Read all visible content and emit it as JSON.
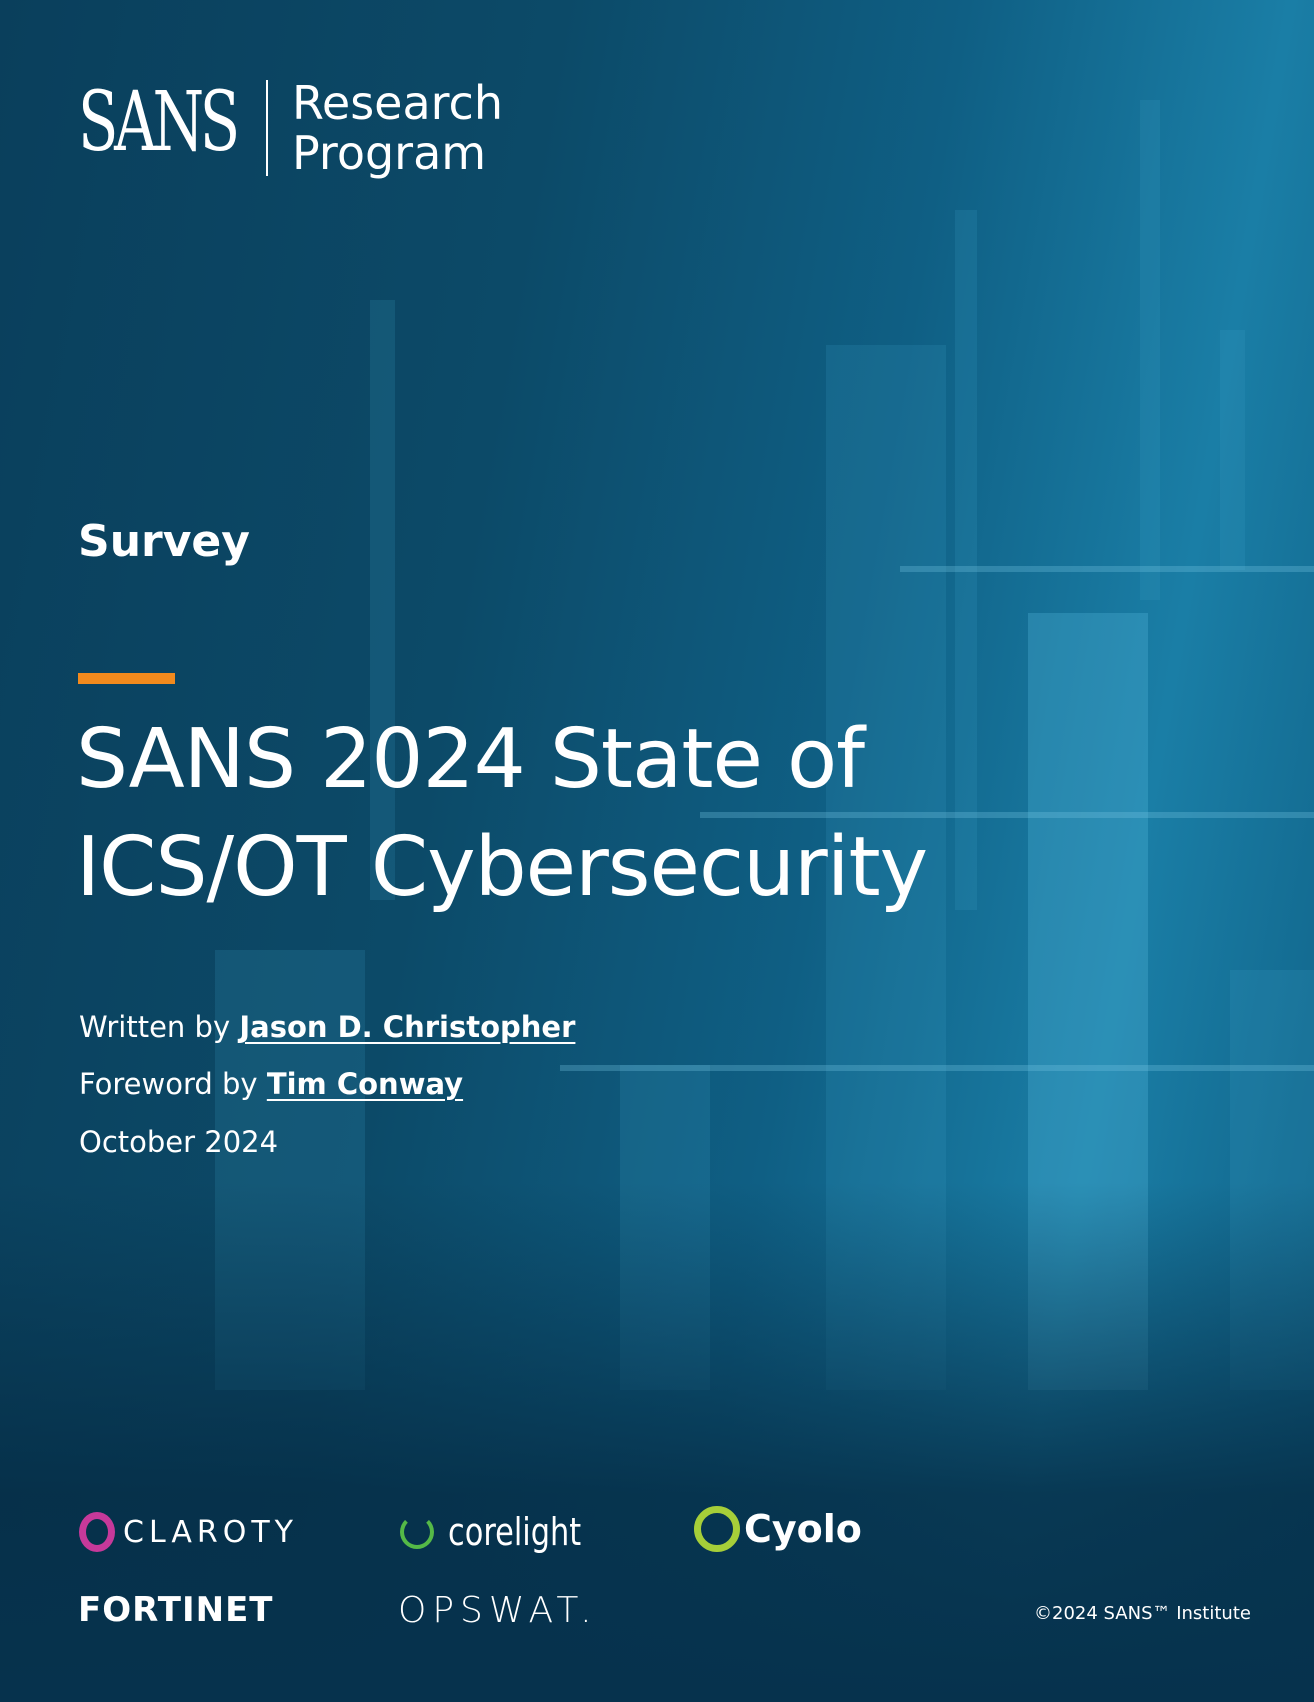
{
  "brand": {
    "logo_text": "SANS",
    "program_line1": "Research",
    "program_line2": "Program"
  },
  "doc_type": "Survey",
  "title_line1": "SANS 2024 State of",
  "title_line2": "ICS/OT Cybersecurity",
  "author_prefix": "Written by",
  "author": "Jason D. Christopher",
  "foreword_prefix": "Foreword by",
  "foreword_author": "Tim Conway",
  "date": "October 2024",
  "sponsors": [
    "CLAROTY",
    "corelight",
    "Cyolo",
    "FORTINET",
    "OPSWAT."
  ],
  "copyright": "©2024 SANS™ Institute",
  "colors": {
    "accent": "#f28a1d",
    "background": "#0c4a68",
    "claroty": "#c6399a",
    "corelight": "#55b947",
    "cyolo": "#a6ce39",
    "fortinet": "#e1252a"
  }
}
